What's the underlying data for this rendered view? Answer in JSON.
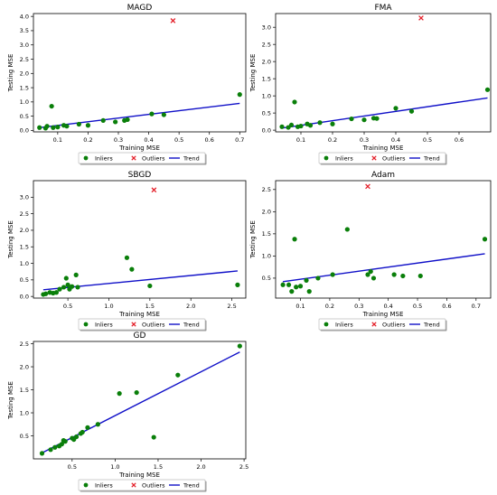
{
  "legend_labels": {
    "inliers": "Inliers",
    "outliers": "Outliers",
    "trend": "Trend"
  },
  "colors": {
    "inliers": "#0a7f0a",
    "outliers": "#e4202a",
    "trend": "#1010c8"
  },
  "chart_data": [
    {
      "type": "scatter",
      "title": "MAGD",
      "xlabel": "Training MSE",
      "ylabel": "Testing MSE",
      "xlim": [
        0.02,
        0.72
      ],
      "ylim": [
        -0.05,
        4.1
      ],
      "xticks": [
        0.1,
        0.2,
        0.3,
        0.4,
        0.5,
        0.6,
        0.7
      ],
      "xtick_labels": [
        "0.1",
        "0.2",
        "0.3",
        "0.4",
        "0.5",
        "0.6",
        "0.7"
      ],
      "yticks": [
        0.0,
        0.5,
        1.0,
        1.5,
        2.0,
        2.5,
        3.0,
        3.5,
        4.0
      ],
      "ytick_labels": [
        "0.0",
        "0.5",
        "1.0",
        "1.5",
        "2.0",
        "2.5",
        "3.0",
        "3.5",
        "4.0"
      ],
      "inliers": [
        [
          0.04,
          0.1
        ],
        [
          0.06,
          0.08
        ],
        [
          0.065,
          0.15
        ],
        [
          0.08,
          0.85
        ],
        [
          0.085,
          0.1
        ],
        [
          0.1,
          0.12
        ],
        [
          0.12,
          0.18
        ],
        [
          0.13,
          0.15
        ],
        [
          0.17,
          0.22
        ],
        [
          0.2,
          0.18
        ],
        [
          0.25,
          0.35
        ],
        [
          0.29,
          0.3
        ],
        [
          0.32,
          0.35
        ],
        [
          0.33,
          0.38
        ],
        [
          0.41,
          0.58
        ],
        [
          0.45,
          0.55
        ],
        [
          0.7,
          1.26
        ]
      ],
      "outliers": [
        [
          0.48,
          3.85
        ]
      ],
      "trend": [
        [
          0.04,
          0.1
        ],
        [
          0.7,
          0.95
        ]
      ],
      "legend": [
        "Inliers",
        "Outliers",
        "Trend"
      ]
    },
    {
      "type": "scatter",
      "title": "FMA",
      "xlabel": "Training MSE",
      "ylabel": "Testing MSE",
      "xlim": [
        0.02,
        0.7
      ],
      "ylim": [
        -0.05,
        3.4
      ],
      "xticks": [
        0.1,
        0.2,
        0.3,
        0.4,
        0.5,
        0.6
      ],
      "xtick_labels": [
        "0.1",
        "0.2",
        "0.3",
        "0.4",
        "0.5",
        "0.6"
      ],
      "yticks": [
        0.0,
        0.5,
        1.0,
        1.5,
        2.0,
        2.5,
        3.0
      ],
      "ytick_labels": [
        "0.0",
        "0.5",
        "1.0",
        "1.5",
        "2.0",
        "2.5",
        "3.0"
      ],
      "inliers": [
        [
          0.04,
          0.1
        ],
        [
          0.06,
          0.08
        ],
        [
          0.07,
          0.15
        ],
        [
          0.08,
          0.82
        ],
        [
          0.09,
          0.1
        ],
        [
          0.1,
          0.12
        ],
        [
          0.12,
          0.18
        ],
        [
          0.13,
          0.14
        ],
        [
          0.16,
          0.22
        ],
        [
          0.2,
          0.18
        ],
        [
          0.26,
          0.33
        ],
        [
          0.3,
          0.3
        ],
        [
          0.33,
          0.35
        ],
        [
          0.34,
          0.34
        ],
        [
          0.4,
          0.64
        ],
        [
          0.45,
          0.55
        ],
        [
          0.69,
          1.18
        ]
      ],
      "outliers": [
        [
          0.48,
          3.27
        ]
      ],
      "trend": [
        [
          0.04,
          0.06
        ],
        [
          0.69,
          0.94
        ]
      ],
      "legend": [
        "Inliers",
        "Outliers",
        "Trend"
      ]
    },
    {
      "type": "scatter",
      "title": "SBGD",
      "xlabel": "Training MSE",
      "ylabel": "Testing MSE",
      "xlim": [
        0.08,
        2.67
      ],
      "ylim": [
        -0.05,
        3.5
      ],
      "xticks": [
        0.5,
        1.0,
        1.5,
        2.0,
        2.5
      ],
      "xtick_labels": [
        "0.5",
        "1.0",
        "1.5",
        "2.0",
        "2.5"
      ],
      "yticks": [
        0.0,
        0.5,
        1.0,
        1.5,
        2.0,
        2.5,
        3.0
      ],
      "ytick_labels": [
        "0.0",
        "0.5",
        "1.0",
        "1.5",
        "2.0",
        "2.5",
        "3.0"
      ],
      "inliers": [
        [
          0.2,
          0.06
        ],
        [
          0.23,
          0.08
        ],
        [
          0.28,
          0.12
        ],
        [
          0.32,
          0.1
        ],
        [
          0.36,
          0.12
        ],
        [
          0.4,
          0.22
        ],
        [
          0.45,
          0.28
        ],
        [
          0.48,
          0.55
        ],
        [
          0.5,
          0.35
        ],
        [
          0.52,
          0.22
        ],
        [
          0.55,
          0.3
        ],
        [
          0.6,
          0.65
        ],
        [
          0.62,
          0.28
        ],
        [
          1.22,
          1.17
        ],
        [
          1.28,
          0.82
        ],
        [
          1.5,
          0.32
        ],
        [
          2.57,
          0.35
        ]
      ],
      "outliers": [
        [
          1.55,
          3.22
        ]
      ],
      "trend": [
        [
          0.2,
          0.2
        ],
        [
          2.57,
          0.77
        ]
      ],
      "legend": [
        "Inliers",
        "Outliers",
        "Trend"
      ]
    },
    {
      "type": "scatter",
      "title": "Adam",
      "xlabel": "Training MSE",
      "ylabel": "Testing MSE",
      "xlim": [
        0.015,
        0.75
      ],
      "ylim": [
        0.05,
        2.7
      ],
      "xticks": [
        0.1,
        0.2,
        0.3,
        0.4,
        0.5,
        0.6,
        0.7
      ],
      "xtick_labels": [
        "0.1",
        "0.2",
        "0.3",
        "0.4",
        "0.5",
        "0.6",
        "0.7"
      ],
      "yticks": [
        0.5,
        1.0,
        1.5,
        2.0,
        2.5
      ],
      "ytick_labels": [
        "0.5",
        "1.0",
        "1.5",
        "2.0",
        "2.5"
      ],
      "inliers": [
        [
          0.04,
          0.35
        ],
        [
          0.06,
          0.35
        ],
        [
          0.07,
          0.2
        ],
        [
          0.08,
          1.38
        ],
        [
          0.085,
          0.3
        ],
        [
          0.1,
          0.32
        ],
        [
          0.12,
          0.45
        ],
        [
          0.13,
          0.2
        ],
        [
          0.16,
          0.5
        ],
        [
          0.21,
          0.58
        ],
        [
          0.26,
          1.6
        ],
        [
          0.33,
          0.58
        ],
        [
          0.34,
          0.65
        ],
        [
          0.35,
          0.5
        ],
        [
          0.42,
          0.58
        ],
        [
          0.45,
          0.55
        ],
        [
          0.51,
          0.55
        ],
        [
          0.73,
          1.38
        ]
      ],
      "outliers": [
        [
          0.33,
          2.57
        ]
      ],
      "trend": [
        [
          0.04,
          0.42
        ],
        [
          0.73,
          1.05
        ]
      ],
      "legend": [
        "Inliers",
        "Outliers",
        "Trend"
      ]
    },
    {
      "type": "scatter",
      "title": "GD",
      "xlabel": "Training MSE",
      "ylabel": "Testing MSE",
      "xlim": [
        0.05,
        2.52
      ],
      "ylim": [
        0.0,
        2.55
      ],
      "xticks": [
        0.5,
        1.0,
        1.5,
        2.0,
        2.5
      ],
      "xtick_labels": [
        "0.5",
        "1.0",
        "1.5",
        "2.0",
        "2.5"
      ],
      "yticks": [
        0.5,
        1.0,
        1.5,
        2.0,
        2.5
      ],
      "ytick_labels": [
        "0.5",
        "1.0",
        "1.5",
        "2.0",
        "2.5"
      ],
      "inliers": [
        [
          0.15,
          0.12
        ],
        [
          0.25,
          0.2
        ],
        [
          0.3,
          0.25
        ],
        [
          0.35,
          0.28
        ],
        [
          0.38,
          0.32
        ],
        [
          0.4,
          0.4
        ],
        [
          0.42,
          0.38
        ],
        [
          0.5,
          0.45
        ],
        [
          0.52,
          0.42
        ],
        [
          0.55,
          0.48
        ],
        [
          0.6,
          0.55
        ],
        [
          0.62,
          0.58
        ],
        [
          0.68,
          0.68
        ],
        [
          0.8,
          0.75
        ],
        [
          1.05,
          1.42
        ],
        [
          1.25,
          1.44
        ],
        [
          1.45,
          0.47
        ],
        [
          1.73,
          1.82
        ],
        [
          2.45,
          2.45
        ]
      ],
      "outliers": [],
      "trend": [
        [
          0.15,
          0.13
        ],
        [
          2.45,
          2.32
        ]
      ],
      "legend": [
        "Inliers",
        "Outliers",
        "Trend"
      ]
    }
  ]
}
